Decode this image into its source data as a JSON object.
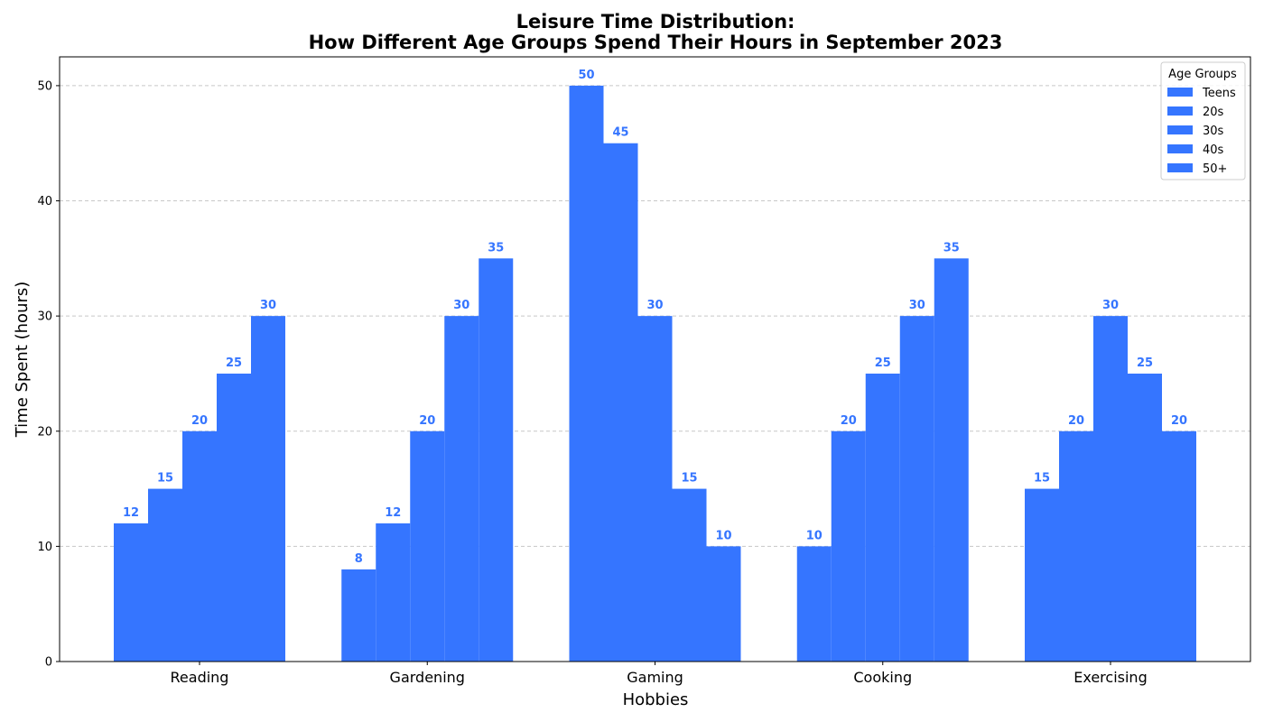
{
  "chart_data": {
    "type": "bar",
    "title_line1": "Leisure Time Distribution:",
    "title_line2": "How Different Age Groups Spend Their Hours in September 2023",
    "xlabel": "Hobbies",
    "ylabel": "Time Spent (hours)",
    "categories": [
      "Reading",
      "Gardening",
      "Gaming",
      "Cooking",
      "Exercising"
    ],
    "series": [
      {
        "name": "Teens",
        "values": [
          12,
          8,
          50,
          10,
          15
        ]
      },
      {
        "name": "20s",
        "values": [
          15,
          12,
          45,
          20,
          20
        ]
      },
      {
        "name": "30s",
        "values": [
          20,
          20,
          30,
          25,
          30
        ]
      },
      {
        "name": "40s",
        "values": [
          25,
          30,
          15,
          30,
          25
        ]
      },
      {
        "name": "50+",
        "values": [
          30,
          35,
          10,
          35,
          20
        ]
      }
    ],
    "ylim": [
      0,
      52.5
    ],
    "yticks": [
      0,
      10,
      20,
      30,
      40,
      50
    ],
    "grid": "y-dashed",
    "legend_title": "Age Groups",
    "legend_position": "top-right",
    "bar_color": "#3575FF",
    "label_color": "#3575FF"
  }
}
